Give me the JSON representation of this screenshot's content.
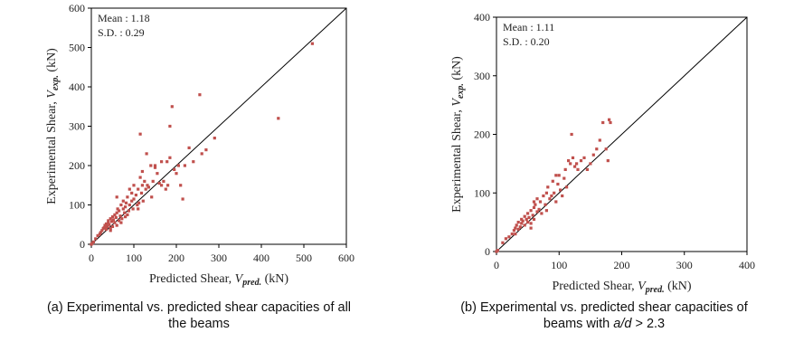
{
  "chart_data": [
    {
      "type": "scatter",
      "xlabel": {
        "prefix": "Predicted Shear, ",
        "symbol": "V",
        "subscript": "pred.",
        "suffix": " (kN)"
      },
      "ylabel": {
        "prefix": "Experimental Shear, ",
        "symbol": "V",
        "subscript": "exp.",
        "suffix": " (kN)"
      },
      "xlim": [
        0,
        600
      ],
      "ylim": [
        0,
        600
      ],
      "xticks": [
        "0",
        "100",
        "200",
        "300",
        "400",
        "500",
        "600"
      ],
      "yticks": [
        "0",
        "100",
        "200",
        "300",
        "400",
        "500",
        "600"
      ],
      "stats": {
        "mean": "Mean : 1.18",
        "sd": "S.D. : 0.29"
      },
      "caption_parts": [
        {
          "text": "(a) Experimental vs. predicted shear capacities of all",
          "italic": false
        }
      ],
      "caption_line2": "the beams",
      "equality_line": true,
      "grid": false,
      "marker_color": "#c0504d",
      "points": [
        [
          0,
          0
        ],
        [
          2,
          2
        ],
        [
          5,
          6
        ],
        [
          10,
          14
        ],
        [
          15,
          22
        ],
        [
          20,
          26
        ],
        [
          22,
          30
        ],
        [
          25,
          35
        ],
        [
          28,
          40
        ],
        [
          30,
          42
        ],
        [
          32,
          48
        ],
        [
          35,
          38
        ],
        [
          35,
          52
        ],
        [
          38,
          45
        ],
        [
          40,
          55
        ],
        [
          40,
          60
        ],
        [
          42,
          50
        ],
        [
          45,
          40
        ],
        [
          45,
          65
        ],
        [
          48,
          58
        ],
        [
          50,
          45
        ],
        [
          50,
          70
        ],
        [
          52,
          62
        ],
        [
          55,
          55
        ],
        [
          55,
          75
        ],
        [
          58,
          68
        ],
        [
          60,
          48
        ],
        [
          60,
          80
        ],
        [
          62,
          90
        ],
        [
          65,
          60
        ],
        [
          65,
          85
        ],
        [
          68,
          72
        ],
        [
          70,
          100
        ],
        [
          72,
          65
        ],
        [
          75,
          90
        ],
        [
          75,
          110
        ],
        [
          78,
          80
        ],
        [
          80,
          95
        ],
        [
          80,
          70
        ],
        [
          82,
          105
        ],
        [
          85,
          120
        ],
        [
          88,
          85
        ],
        [
          90,
          100
        ],
        [
          90,
          140
        ],
        [
          95,
          110
        ],
        [
          95,
          130
        ],
        [
          98,
          90
        ],
        [
          100,
          115
        ],
        [
          100,
          150
        ],
        [
          105,
          125
        ],
        [
          108,
          100
        ],
        [
          110,
          140
        ],
        [
          112,
          105
        ],
        [
          115,
          170
        ],
        [
          115,
          280
        ],
        [
          118,
          130
        ],
        [
          120,
          150
        ],
        [
          120,
          185
        ],
        [
          122,
          110
        ],
        [
          125,
          160
        ],
        [
          128,
          140
        ],
        [
          130,
          230
        ],
        [
          132,
          150
        ],
        [
          135,
          145
        ],
        [
          140,
          200
        ],
        [
          142,
          120
        ],
        [
          145,
          160
        ],
        [
          150,
          200
        ],
        [
          155,
          180
        ],
        [
          160,
          155
        ],
        [
          165,
          150
        ],
        [
          170,
          160
        ],
        [
          175,
          140
        ],
        [
          178,
          210
        ],
        [
          180,
          150
        ],
        [
          185,
          300
        ],
        [
          185,
          220
        ],
        [
          190,
          350
        ],
        [
          195,
          190
        ],
        [
          200,
          180
        ],
        [
          205,
          200
        ],
        [
          210,
          150
        ],
        [
          215,
          115
        ],
        [
          220,
          200
        ],
        [
          230,
          245
        ],
        [
          240,
          210
        ],
        [
          255,
          380
        ],
        [
          260,
          230
        ],
        [
          270,
          240
        ],
        [
          290,
          270
        ],
        [
          440,
          320
        ],
        [
          520,
          510
        ],
        [
          60,
          120
        ],
        [
          70,
          55
        ],
        [
          85,
          75
        ],
        [
          110,
          90
        ],
        [
          150,
          195
        ],
        [
          165,
          210
        ],
        [
          45,
          35
        ],
        [
          35,
          45
        ]
      ]
    },
    {
      "type": "scatter",
      "xlabel": {
        "prefix": "Predicted Shear, ",
        "symbol": "V",
        "subscript": "pred.",
        "suffix": " (kN)"
      },
      "ylabel": {
        "prefix": "Experimental Shear, ",
        "symbol": "V",
        "subscript": "exp.",
        "suffix": " (kN)"
      },
      "xlim": [
        0,
        400
      ],
      "ylim": [
        0,
        400
      ],
      "xticks": [
        "0",
        "100",
        "200",
        "300",
        "400"
      ],
      "yticks": [
        "0",
        "100",
        "200",
        "300",
        "400"
      ],
      "stats": {
        "mean": "Mean : 1.11",
        "sd": "S.D. : 0.20"
      },
      "caption_parts": [
        {
          "text": "(b) Experimental vs. predicted shear capacities of",
          "italic": false
        }
      ],
      "caption_line2_parts": [
        {
          "text": "beams with ",
          "italic": false
        },
        {
          "text": "a/d",
          "italic": true
        },
        {
          "text": " > 2.3",
          "italic": false
        }
      ],
      "equality_line": true,
      "grid": false,
      "marker_color": "#c0504d",
      "points": [
        [
          0,
          0
        ],
        [
          2,
          2
        ],
        [
          10,
          15
        ],
        [
          15,
          22
        ],
        [
          20,
          25
        ],
        [
          25,
          30
        ],
        [
          28,
          36
        ],
        [
          30,
          40
        ],
        [
          32,
          45
        ],
        [
          35,
          38
        ],
        [
          35,
          50
        ],
        [
          38,
          42
        ],
        [
          40,
          55
        ],
        [
          40,
          48
        ],
        [
          42,
          52
        ],
        [
          45,
          45
        ],
        [
          45,
          60
        ],
        [
          48,
          55
        ],
        [
          50,
          50
        ],
        [
          50,
          65
        ],
        [
          52,
          58
        ],
        [
          55,
          70
        ],
        [
          55,
          48
        ],
        [
          58,
          62
        ],
        [
          60,
          75
        ],
        [
          60,
          55
        ],
        [
          62,
          80
        ],
        [
          65,
          68
        ],
        [
          65,
          90
        ],
        [
          68,
          72
        ],
        [
          70,
          85
        ],
        [
          72,
          65
        ],
        [
          75,
          95
        ],
        [
          78,
          80
        ],
        [
          80,
          100
        ],
        [
          80,
          70
        ],
        [
          82,
          110
        ],
        [
          85,
          90
        ],
        [
          88,
          95
        ],
        [
          90,
          120
        ],
        [
          92,
          100
        ],
        [
          95,
          85
        ],
        [
          98,
          115
        ],
        [
          100,
          130
        ],
        [
          102,
          105
        ],
        [
          105,
          95
        ],
        [
          108,
          125
        ],
        [
          110,
          140
        ],
        [
          112,
          110
        ],
        [
          115,
          155
        ],
        [
          118,
          150
        ],
        [
          120,
          200
        ],
        [
          122,
          160
        ],
        [
          125,
          145
        ],
        [
          128,
          150
        ],
        [
          130,
          140
        ],
        [
          135,
          155
        ],
        [
          140,
          160
        ],
        [
          145,
          140
        ],
        [
          150,
          150
        ],
        [
          155,
          165
        ],
        [
          160,
          175
        ],
        [
          165,
          190
        ],
        [
          170,
          220
        ],
        [
          175,
          175
        ],
        [
          178,
          155
        ],
        [
          180,
          225
        ],
        [
          182,
          220
        ],
        [
          55,
          40
        ],
        [
          60,
          85
        ],
        [
          95,
          130
        ],
        [
          30,
          30
        ]
      ]
    }
  ]
}
